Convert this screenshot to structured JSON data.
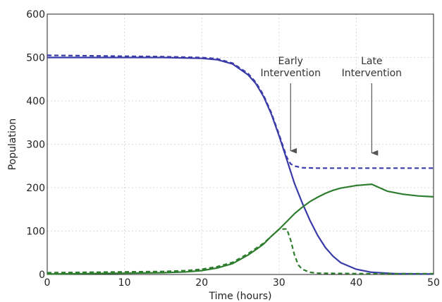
{
  "chart_data": {
    "type": "line",
    "xlabel": "Time (hours)",
    "ylabel": "Population",
    "xlim": [
      0,
      50
    ],
    "ylim": [
      0,
      600
    ],
    "xticks": [
      0,
      10,
      20,
      30,
      40,
      50
    ],
    "yticks": [
      0,
      100,
      200,
      300,
      400,
      500,
      600
    ],
    "grid": true,
    "colors": {
      "blue": "#3a3aa8",
      "green": "#2e7d2e",
      "arrow": "#555555"
    },
    "series": [
      {
        "style": "solid",
        "color": "blue",
        "x": [
          0,
          5,
          10,
          15,
          20,
          22,
          24,
          26,
          27,
          28,
          29,
          30,
          31,
          32,
          33,
          34,
          35,
          36,
          37,
          38,
          40,
          42,
          45,
          50
        ],
        "y": [
          500,
          500,
          500,
          500,
          498,
          495,
          485,
          460,
          440,
          410,
          370,
          320,
          265,
          210,
          165,
          125,
          90,
          62,
          42,
          27,
          12,
          5,
          2,
          1
        ]
      },
      {
        "style": "dashed",
        "color": "blue",
        "x": [
          0,
          5,
          10,
          15,
          20,
          22,
          24,
          26,
          27,
          28,
          29,
          30,
          31,
          31.5,
          32,
          32.5,
          33,
          35,
          40,
          45,
          50
        ],
        "y": [
          505,
          504,
          503,
          502,
          500,
          497,
          487,
          463,
          443,
          413,
          373,
          323,
          270,
          255,
          250,
          248,
          246,
          245,
          245,
          245,
          245
        ]
      },
      {
        "style": "solid",
        "color": "green",
        "x": [
          0,
          5,
          10,
          15,
          18,
          20,
          22,
          24,
          26,
          27,
          28,
          29,
          30,
          31,
          32,
          33,
          34,
          35,
          36,
          37,
          38,
          40,
          42,
          44,
          46,
          48,
          50
        ],
        "y": [
          1,
          2,
          3,
          4,
          6,
          9,
          15,
          25,
          45,
          57,
          70,
          88,
          104,
          122,
          140,
          155,
          168,
          178,
          187,
          194,
          199,
          205,
          208,
          192,
          185,
          181,
          179
        ]
      },
      {
        "style": "dashed",
        "color": "green",
        "x": [
          0,
          5,
          10,
          15,
          18,
          20,
          22,
          24,
          26,
          27,
          28,
          29,
          30,
          31,
          31.5,
          32,
          32.5,
          33,
          34,
          35,
          40,
          45,
          50
        ],
        "y": [
          4,
          5,
          6,
          7,
          9,
          12,
          18,
          28,
          48,
          60,
          72,
          88,
          104,
          105,
          80,
          45,
          22,
          12,
          5,
          3,
          2,
          2,
          2
        ]
      }
    ],
    "annotations": [
      {
        "lines": [
          "Early",
          "Intervention"
        ],
        "x_data": 31.5,
        "arrow_to_y": 285
      },
      {
        "lines": [
          "Late",
          "Intervention"
        ],
        "x_data": 42,
        "arrow_to_y": 280
      }
    ]
  }
}
